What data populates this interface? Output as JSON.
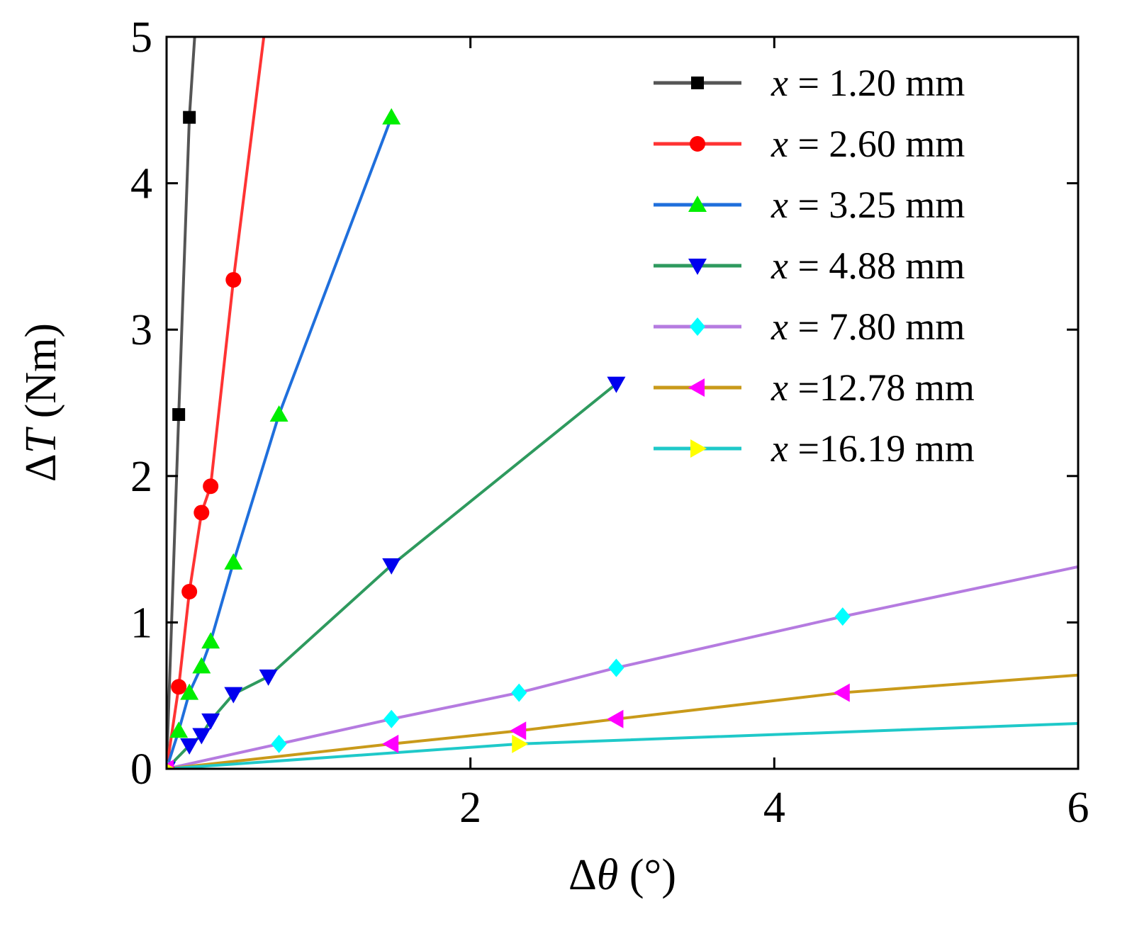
{
  "chart_data": {
    "type": "line",
    "title": "",
    "xlabel": {
      "prefix": "Δ",
      "symbol": "θ",
      "unit": " (°)"
    },
    "ylabel": {
      "prefix": "Δ",
      "symbol": "T",
      "unit": " (Nm)"
    },
    "xlim": [
      0,
      6
    ],
    "ylim": [
      0,
      5
    ],
    "xticks": [
      {
        "value": 0,
        "label": ""
      },
      {
        "value": 2,
        "label": "2"
      },
      {
        "value": 4,
        "label": "4"
      },
      {
        "value": 6,
        "label": "6"
      }
    ],
    "yticks": [
      {
        "value": 0,
        "label": "0"
      },
      {
        "value": 1,
        "label": "1"
      },
      {
        "value": 2,
        "label": "2"
      },
      {
        "value": 3,
        "label": "3"
      },
      {
        "value": 4,
        "label": "4"
      },
      {
        "value": 5,
        "label": "5"
      }
    ],
    "grid": false,
    "legend_position": "top-right",
    "series": [
      {
        "name": "x = 1.20 mm",
        "var": "x",
        "rest": " = 1.20 mm",
        "color": "#555555",
        "marker": "square",
        "marker_color": "#000000",
        "points": [
          [
            0.0,
            0.0
          ],
          [
            0.08,
            2.42
          ],
          [
            0.15,
            4.45
          ]
        ],
        "line": [
          [
            0.0,
            0.0
          ],
          [
            0.08,
            2.42
          ],
          [
            0.15,
            4.45
          ],
          [
            0.185,
            5.0
          ]
        ]
      },
      {
        "name": "x = 2.60 mm",
        "var": "x",
        "rest": " = 2.60 mm",
        "color": "#ff3333",
        "marker": "circle",
        "marker_color": "#ff0000",
        "points": [
          [
            0.0,
            0.0
          ],
          [
            0.08,
            0.56
          ],
          [
            0.15,
            1.21
          ],
          [
            0.23,
            1.75
          ],
          [
            0.29,
            1.93
          ],
          [
            0.44,
            3.34
          ]
        ],
        "line": [
          [
            0.0,
            0.0
          ],
          [
            0.08,
            0.56
          ],
          [
            0.15,
            1.21
          ],
          [
            0.23,
            1.75
          ],
          [
            0.29,
            1.93
          ],
          [
            0.44,
            3.34
          ],
          [
            0.64,
            5.0
          ]
        ]
      },
      {
        "name": "x = 3.25 mm",
        "var": "x",
        "rest": " = 3.25 mm",
        "color": "#1f6fdc",
        "marker": "triangle-up",
        "marker_color": "#00ee00",
        "points": [
          [
            0.0,
            0.0
          ],
          [
            0.08,
            0.26
          ],
          [
            0.15,
            0.52
          ],
          [
            0.23,
            0.7
          ],
          [
            0.29,
            0.87
          ],
          [
            0.44,
            1.41
          ],
          [
            0.74,
            2.42
          ],
          [
            1.48,
            4.45
          ]
        ],
        "line": [
          [
            0.0,
            0.0
          ],
          [
            0.08,
            0.26
          ],
          [
            0.15,
            0.52
          ],
          [
            0.23,
            0.7
          ],
          [
            0.29,
            0.87
          ],
          [
            0.44,
            1.41
          ],
          [
            0.74,
            2.42
          ],
          [
            1.48,
            4.45
          ]
        ]
      },
      {
        "name": "x = 4.88 mm",
        "var": "x",
        "rest": " = 4.88 mm",
        "color": "#2e9a5e",
        "marker": "triangle-down",
        "marker_color": "#0000ee",
        "points": [
          [
            0.0,
            0.0
          ],
          [
            0.15,
            0.16
          ],
          [
            0.23,
            0.23
          ],
          [
            0.29,
            0.33
          ],
          [
            0.44,
            0.51
          ],
          [
            0.67,
            0.63
          ],
          [
            1.48,
            1.39
          ],
          [
            2.96,
            2.63
          ]
        ],
        "line": [
          [
            0.0,
            0.0
          ],
          [
            0.15,
            0.16
          ],
          [
            0.23,
            0.23
          ],
          [
            0.29,
            0.33
          ],
          [
            0.44,
            0.51
          ],
          [
            0.67,
            0.63
          ],
          [
            1.48,
            1.39
          ],
          [
            2.96,
            2.63
          ]
        ]
      },
      {
        "name": "x = 7.80 mm",
        "var": "x",
        "rest": " = 7.80 mm",
        "color": "#b57be0",
        "marker": "diamond",
        "marker_color": "#00ffff",
        "points": [
          [
            0.0,
            0.0
          ],
          [
            0.74,
            0.17
          ],
          [
            1.48,
            0.34
          ],
          [
            2.32,
            0.52
          ],
          [
            2.96,
            0.69
          ],
          [
            4.45,
            1.04
          ]
        ],
        "line": [
          [
            0.0,
            0.0
          ],
          [
            0.74,
            0.17
          ],
          [
            1.48,
            0.34
          ],
          [
            2.32,
            0.52
          ],
          [
            2.96,
            0.69
          ],
          [
            4.45,
            1.04
          ],
          [
            6.0,
            1.38
          ]
        ]
      },
      {
        "name": "x =12.78 mm",
        "var": "x",
        "rest": " =12.78 mm",
        "color": "#c99a1a",
        "marker": "triangle-left",
        "marker_color": "#ff00ff",
        "points": [
          [
            0.0,
            0.0
          ],
          [
            1.48,
            0.17
          ],
          [
            2.32,
            0.26
          ],
          [
            2.96,
            0.34
          ],
          [
            4.45,
            0.52
          ]
        ],
        "line": [
          [
            0.0,
            0.0
          ],
          [
            1.48,
            0.17
          ],
          [
            2.32,
            0.26
          ],
          [
            2.96,
            0.34
          ],
          [
            4.45,
            0.52
          ],
          [
            6.0,
            0.64
          ]
        ]
      },
      {
        "name": "x =16.19 mm",
        "var": "x",
        "rest": " =16.19 mm",
        "color": "#1fc9c9",
        "marker": "triangle-right",
        "marker_color": "#ffff00",
        "points": [
          [
            0.0,
            0.0
          ],
          [
            2.32,
            0.17
          ]
        ],
        "line": [
          [
            0.0,
            0.0
          ],
          [
            2.32,
            0.17
          ],
          [
            6.0,
            0.31
          ]
        ]
      }
    ]
  }
}
